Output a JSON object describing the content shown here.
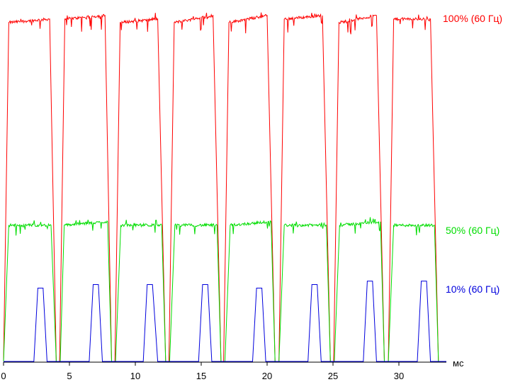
{
  "chart_data": {
    "type": "line",
    "title": "",
    "xlabel": "",
    "ylabel": "",
    "x_unit": "мс",
    "xlim": [
      0,
      33.6
    ],
    "ylim": [
      0,
      100
    ],
    "x_ticks": [
      0,
      5,
      10,
      15,
      20,
      25,
      30
    ],
    "grid": false,
    "legend": "right-inline",
    "period_ms": 4.167,
    "series": [
      {
        "name": "100% (60 Гц)",
        "color": "#ff0000",
        "points": [
          [
            0,
            0
          ],
          [
            0.4,
            97
          ],
          [
            3.5,
            98
          ],
          [
            4.0,
            0
          ],
          [
            4.25,
            0
          ],
          [
            4.65,
            98
          ],
          [
            7.7,
            99
          ],
          [
            8.2,
            0
          ],
          [
            8.45,
            0
          ],
          [
            8.85,
            97
          ],
          [
            11.7,
            98
          ],
          [
            12.3,
            0
          ],
          [
            12.55,
            0
          ],
          [
            12.95,
            97
          ],
          [
            15.9,
            99
          ],
          [
            16.5,
            0
          ],
          [
            16.7,
            0
          ],
          [
            17.1,
            97
          ],
          [
            20.0,
            99
          ],
          [
            20.6,
            0
          ],
          [
            20.9,
            0
          ],
          [
            21.3,
            98
          ],
          [
            24.2,
            99
          ],
          [
            24.8,
            0
          ],
          [
            25.05,
            0
          ],
          [
            25.45,
            97
          ],
          [
            28.3,
            99
          ],
          [
            28.9,
            0
          ],
          [
            29.2,
            0
          ],
          [
            29.6,
            98
          ],
          [
            32.4,
            98
          ],
          [
            33.0,
            0
          ],
          [
            33.6,
            0
          ]
        ]
      },
      {
        "name": "50% (60 Гц)",
        "color": "#00dd00",
        "points": [
          [
            0,
            0
          ],
          [
            0.4,
            39
          ],
          [
            3.6,
            39
          ],
          [
            4.0,
            0
          ],
          [
            4.3,
            0
          ],
          [
            4.6,
            39
          ],
          [
            7.9,
            40
          ],
          [
            8.2,
            0
          ],
          [
            8.5,
            0
          ],
          [
            8.9,
            39
          ],
          [
            12.0,
            39
          ],
          [
            12.3,
            0
          ],
          [
            12.6,
            0
          ],
          [
            13.0,
            39
          ],
          [
            16.2,
            39
          ],
          [
            16.5,
            0
          ],
          [
            16.8,
            0
          ],
          [
            17.2,
            39
          ],
          [
            20.3,
            40
          ],
          [
            20.6,
            0
          ],
          [
            20.9,
            0
          ],
          [
            21.3,
            39
          ],
          [
            24.5,
            39
          ],
          [
            24.8,
            0
          ],
          [
            25.1,
            0
          ],
          [
            25.5,
            39
          ],
          [
            28.6,
            40
          ],
          [
            28.9,
            0
          ],
          [
            29.2,
            0
          ],
          [
            29.6,
            39
          ],
          [
            32.7,
            39
          ],
          [
            33.0,
            0
          ],
          [
            33.6,
            0
          ]
        ]
      },
      {
        "name": "10% (60 Гц)",
        "color": "#0000dd",
        "points": [
          [
            0,
            0
          ],
          [
            2.3,
            0
          ],
          [
            2.6,
            21
          ],
          [
            3.0,
            21
          ],
          [
            3.3,
            0
          ],
          [
            6.5,
            0
          ],
          [
            6.8,
            22
          ],
          [
            7.2,
            22
          ],
          [
            7.5,
            0
          ],
          [
            10.6,
            0
          ],
          [
            10.9,
            22
          ],
          [
            11.3,
            22
          ],
          [
            11.7,
            0
          ],
          [
            14.8,
            0
          ],
          [
            15.1,
            22
          ],
          [
            15.5,
            22
          ],
          [
            15.8,
            0
          ],
          [
            18.9,
            0
          ],
          [
            19.2,
            21
          ],
          [
            19.6,
            21
          ],
          [
            19.9,
            0
          ],
          [
            23.1,
            0
          ],
          [
            23.4,
            22
          ],
          [
            23.8,
            22
          ],
          [
            24.1,
            0
          ],
          [
            27.3,
            0
          ],
          [
            27.6,
            23
          ],
          [
            28.0,
            23
          ],
          [
            28.3,
            0
          ],
          [
            31.4,
            0
          ],
          [
            31.7,
            23
          ],
          [
            32.1,
            23
          ],
          [
            32.4,
            0
          ],
          [
            33.6,
            0
          ]
        ]
      }
    ]
  }
}
